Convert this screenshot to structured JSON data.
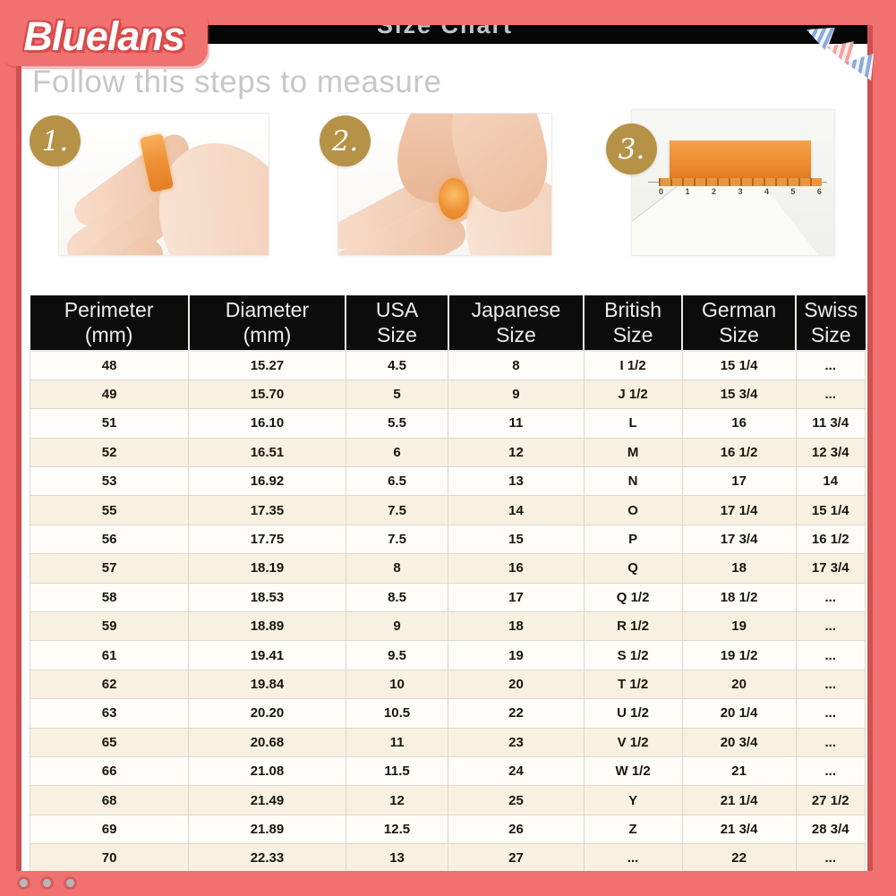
{
  "brand": {
    "name": "Bluelans"
  },
  "header": {
    "title": "Size Chart"
  },
  "instructions": {
    "heading": "Follow this steps to measure",
    "steps": [
      {
        "number": "1."
      },
      {
        "number": "2."
      },
      {
        "number": "3."
      }
    ],
    "ruler_numbers": [
      "0",
      "1",
      "2",
      "3",
      "4",
      "5",
      "6"
    ]
  },
  "table": {
    "columns": [
      {
        "line1": "Perimeter",
        "line2": "(mm)"
      },
      {
        "line1": "Diameter",
        "line2": "(mm)"
      },
      {
        "line1": "USA",
        "line2": "Size"
      },
      {
        "line1": "Japanese",
        "line2": "Size"
      },
      {
        "line1": "British",
        "line2": "Size"
      },
      {
        "line1": "German",
        "line2": "Size"
      },
      {
        "line1": "Swiss",
        "line2": "Size"
      }
    ],
    "rows": [
      [
        "48",
        "15.27",
        "4.5",
        "8",
        "I 1/2",
        "15 1/4",
        "..."
      ],
      [
        "49",
        "15.70",
        "5",
        "9",
        "J 1/2",
        "15 3/4",
        "..."
      ],
      [
        "51",
        "16.10",
        "5.5",
        "11",
        "L",
        "16",
        "11 3/4"
      ],
      [
        "52",
        "16.51",
        "6",
        "12",
        "M",
        "16 1/2",
        "12 3/4"
      ],
      [
        "53",
        "16.92",
        "6.5",
        "13",
        "N",
        "17",
        "14"
      ],
      [
        "55",
        "17.35",
        "7.5",
        "14",
        "O",
        "17 1/4",
        "15 1/4"
      ],
      [
        "56",
        "17.75",
        "7.5",
        "15",
        "P",
        "17 3/4",
        "16 1/2"
      ],
      [
        "57",
        "18.19",
        "8",
        "16",
        "Q",
        "18",
        "17 3/4"
      ],
      [
        "58",
        "18.53",
        "8.5",
        "17",
        "Q 1/2",
        "18 1/2",
        "..."
      ],
      [
        "59",
        "18.89",
        "9",
        "18",
        "R 1/2",
        "19",
        "..."
      ],
      [
        "61",
        "19.41",
        "9.5",
        "19",
        "S 1/2",
        "19 1/2",
        "..."
      ],
      [
        "62",
        "19.84",
        "10",
        "20",
        "T 1/2",
        "20",
        "..."
      ],
      [
        "63",
        "20.20",
        "10.5",
        "22",
        "U 1/2",
        "20 1/4",
        "..."
      ],
      [
        "65",
        "20.68",
        "11",
        "23",
        "V 1/2",
        "20 3/4",
        "..."
      ],
      [
        "66",
        "21.08",
        "11.5",
        "24",
        "W 1/2",
        "21",
        "..."
      ],
      [
        "68",
        "21.49",
        "12",
        "25",
        "Y",
        "21 1/4",
        "27 1/2"
      ],
      [
        "69",
        "21.89",
        "12.5",
        "26",
        "Z",
        "21 3/4",
        "28 3/4"
      ],
      [
        "70",
        "22.33",
        "13",
        "27",
        "...",
        "22",
        "..."
      ]
    ]
  },
  "pagination": {
    "dot_count": 3
  },
  "colors": {
    "frame_salmon": "#f17070",
    "frame_dark_red": "#d05050",
    "title_bar_black": "#060606",
    "gold_badge": "#b59245",
    "row_cream": "#f8f1e1",
    "row_white": "#fefdfa",
    "strip_orange": "#ee8c31"
  }
}
